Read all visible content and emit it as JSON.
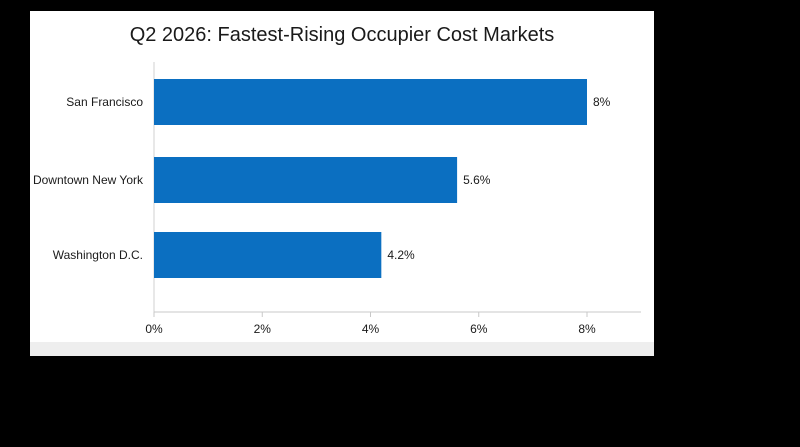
{
  "chart_data": {
    "type": "bar",
    "orientation": "horizontal",
    "title": "Q2 2026: Fastest-Rising Occupier Cost Markets",
    "categories": [
      "San Francisco",
      "Downtown New York",
      "Washington D.C."
    ],
    "values": [
      8,
      5.6,
      4.2
    ],
    "data_labels": [
      "8%",
      "5.6%",
      "4.2%"
    ],
    "xlim": [
      0,
      9
    ],
    "x_ticks": [
      0,
      2,
      4,
      6,
      8
    ],
    "x_tick_labels": [
      "0%",
      "2%",
      "4%",
      "6%",
      "8%"
    ],
    "xlabel": "",
    "ylabel": "",
    "grid": false,
    "bar_color": "#0b6fc1"
  }
}
